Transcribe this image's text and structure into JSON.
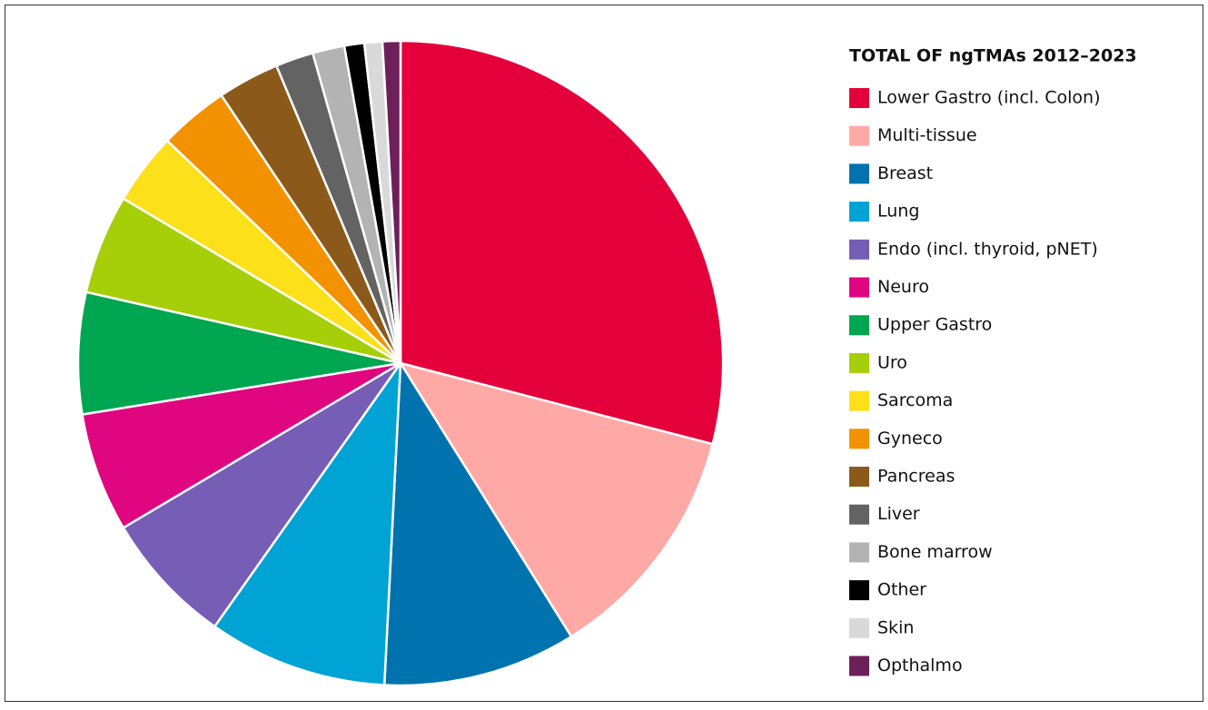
{
  "chart_data": {
    "type": "pie",
    "title": "TOTAL OF ngTMAs 2012–2023",
    "categories": [
      "Lower Gastro (incl. Colon)",
      "Multi-tissue",
      "Breast",
      "Lung",
      "Endo (incl. thyroid, pNET)",
      "Neuro",
      "Upper Gastro",
      "Uro",
      "Sarcoma",
      "Gyneco",
      "Pancreas",
      "Liver",
      "Bone marrow",
      "Other",
      "Skin",
      "Opthalmo"
    ],
    "values": [
      29.1,
      12.1,
      9.7,
      9.0,
      6.7,
      6.0,
      6.1,
      5.0,
      3.6,
      3.5,
      3.1,
      1.9,
      1.6,
      1.0,
      0.9,
      0.9
    ],
    "colors": [
      "#e4003a",
      "#ffa9a6",
      "#0073ae",
      "#00a3d4",
      "#765db5",
      "#e0067f",
      "#00a650",
      "#a6cf09",
      "#fce01a",
      "#f39200",
      "#8b5a1a",
      "#636363",
      "#b3b3b3",
      "#000000",
      "#d9d9d9",
      "#6d1f5a"
    ],
    "legend": "right"
  }
}
